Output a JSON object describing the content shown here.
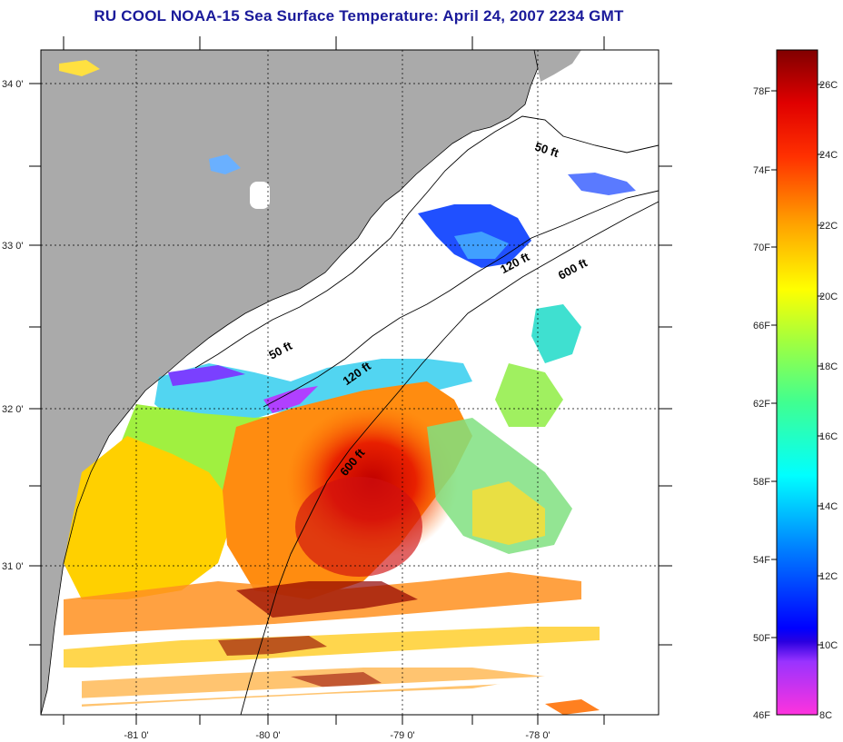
{
  "title": "RU COOL  NOAA-15  Sea Surface Temperature:  April 24, 2007 2234 GMT",
  "map": {
    "lon_labels": [
      "-81 0'",
      "-80 0'",
      "-79 0'",
      "-78 0'"
    ],
    "lat_labels": [
      "34 0'",
      "33 0'",
      "32 0'",
      "31 0'"
    ],
    "contour_labels": [
      "50 ft",
      "120 ft",
      "600 ft",
      "50 ft",
      "120 ft",
      "600 ft"
    ],
    "colors": {
      "land": "#aaaaaa",
      "ocean_nodata": "#ffffff"
    }
  },
  "colorbar": {
    "fahrenheit_labels": [
      "78F",
      "74F",
      "70F",
      "66F",
      "62F",
      "58F",
      "54F",
      "50F",
      "46F"
    ],
    "celsius_labels": [
      "26C",
      "24C",
      "22C",
      "20C",
      "18C",
      "16C",
      "14C",
      "12C",
      "10C",
      "8C"
    ]
  }
}
